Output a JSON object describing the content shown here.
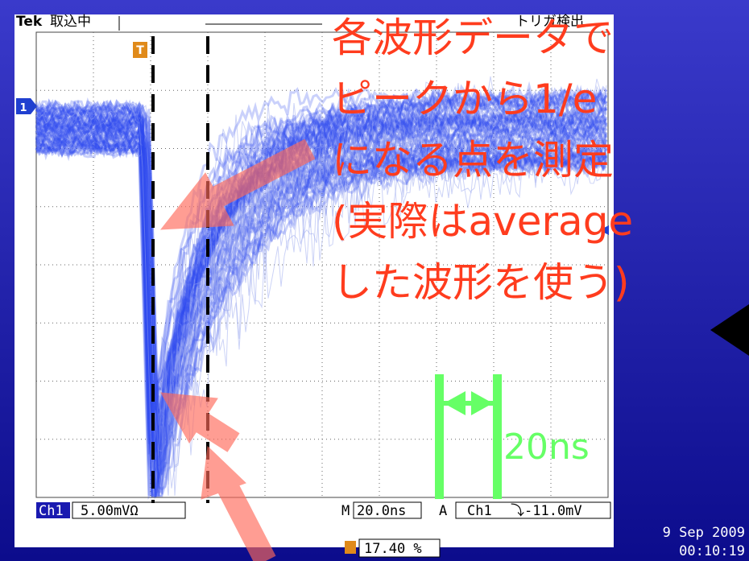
{
  "header": {
    "brand": "Tek",
    "status": "取込中",
    "trigger_status": "トリガ検出"
  },
  "markers": {
    "channel": "1",
    "trigger": "T"
  },
  "annotation": {
    "lines": [
      "各波形データで",
      "ピークから1/e",
      "になる点を測定",
      "(実際はaverage",
      "した波形を使う)"
    ],
    "scale": "20ns"
  },
  "readout": {
    "channel": "Ch1",
    "scale": "5.00mVΩ",
    "time_prefix": "M",
    "time_scale": "20.0ns",
    "trigger_source_prefix": "A",
    "trigger_channel": "Ch1",
    "trigger_level": "⤵-11.0mV",
    "trigger_position": "17.40 %",
    "date": "9 Sep 2009",
    "time": "00:10:19"
  }
}
